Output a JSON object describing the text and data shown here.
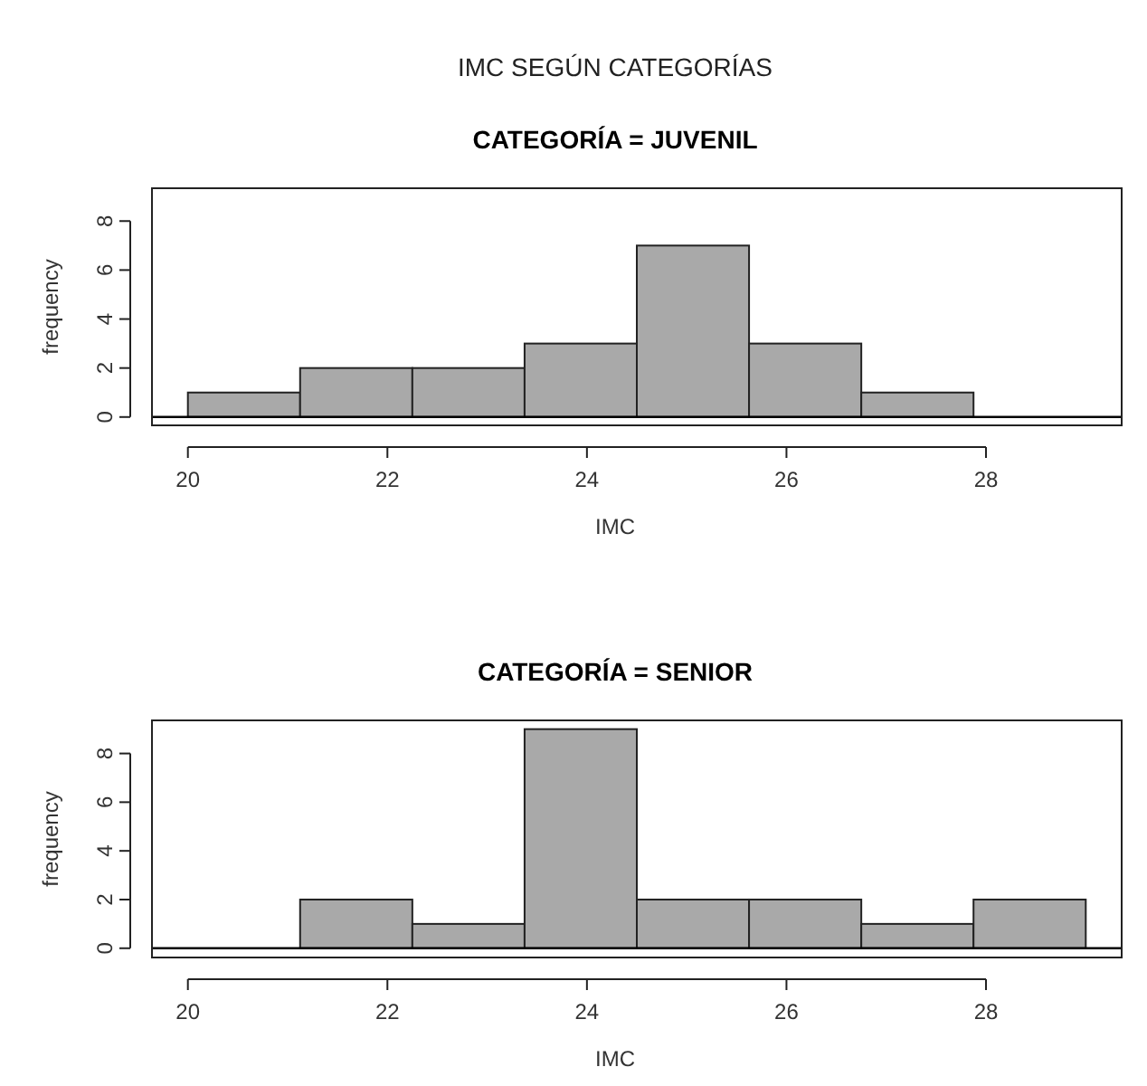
{
  "chart_data": [
    {
      "type": "histogram",
      "title": "CATEGORÍA = JUVENIL",
      "annotations": [
        "IMC SEGÚN CATEGORÍAS"
      ],
      "xlabel": "IMC",
      "ylabel": "frequency",
      "color": "#a9a9a9",
      "bins": [
        20,
        21.125,
        22.25,
        23.375,
        24.5,
        25.625,
        26.75,
        27.875,
        29
      ],
      "values": [
        1,
        2,
        2,
        3,
        7,
        3,
        1,
        0
      ],
      "xlim": [
        19.64,
        29.36
      ],
      "ylim": [
        -0.34,
        9.34
      ],
      "xticks": [
        20,
        22,
        24,
        26,
        28
      ],
      "yticks": [
        0,
        2,
        4,
        6,
        8
      ],
      "ref_lines": [
        {
          "axis": "y",
          "value": 0
        }
      ],
      "grid": false
    },
    {
      "type": "histogram",
      "title": "CATEGORÍA = SENIOR",
      "xlabel": "IMC",
      "ylabel": "frequency",
      "color": "#a9a9a9",
      "bins": [
        20,
        21.125,
        22.25,
        23.375,
        24.5,
        25.625,
        26.75,
        27.875,
        29
      ],
      "values": [
        0,
        2,
        1,
        9,
        2,
        2,
        1,
        2
      ],
      "xlim": [
        19.64,
        29.36
      ],
      "ylim": [
        -0.38,
        9.36
      ],
      "xticks": [
        20,
        22,
        24,
        26,
        28
      ],
      "yticks": [
        0,
        2,
        4,
        6,
        8
      ],
      "ref_lines": [
        {
          "axis": "y",
          "value": 0
        }
      ],
      "grid": false
    }
  ]
}
